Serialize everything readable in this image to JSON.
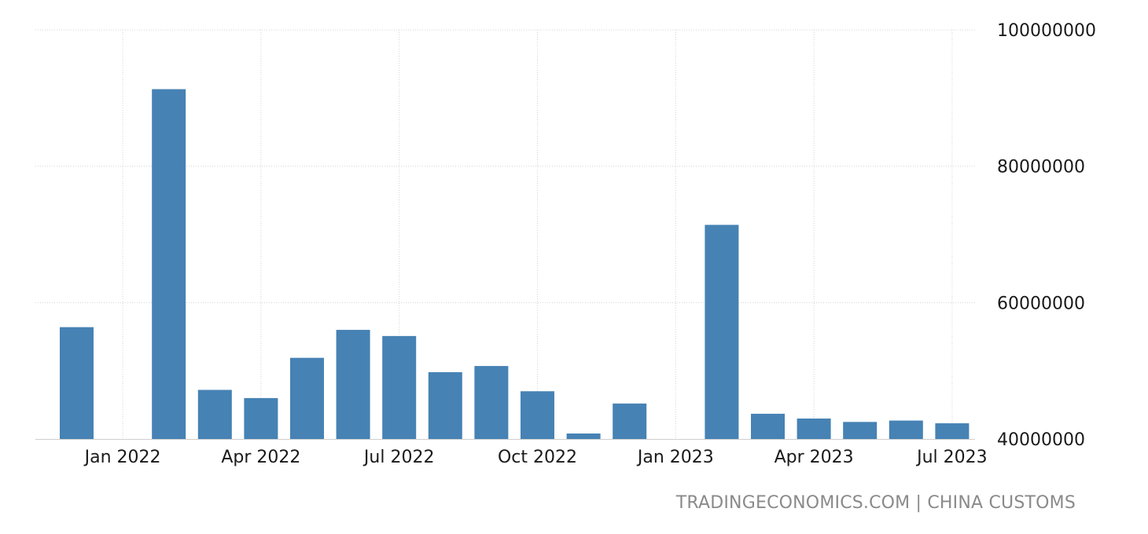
{
  "chart_data": {
    "type": "bar",
    "title": "",
    "xlabel": "",
    "ylabel": "",
    "categories": [
      "Dec 2021",
      "Jan 2022",
      "Feb 2022",
      "Mar 2022",
      "Apr 2022",
      "May 2022",
      "Jun 2022",
      "Jul 2022",
      "Aug 2022",
      "Sep 2022",
      "Oct 2022",
      "Nov 2022",
      "Dec 2022",
      "Jan 2023",
      "Feb 2023",
      "Mar 2023",
      "Apr 2023",
      "May 2023",
      "Jun 2023",
      "Jul 2023"
    ],
    "values": [
      56400000,
      null,
      91300000,
      47200000,
      46000000,
      51900000,
      56000000,
      55100000,
      49800000,
      50700000,
      47000000,
      40800000,
      45200000,
      null,
      71400000,
      43700000,
      43000000,
      42500000,
      42700000,
      42300000
    ],
    "ylim": [
      40000000,
      100000000
    ],
    "y_ticks": [
      "40000000",
      "60000000",
      "80000000",
      "100000000"
    ],
    "x_ticks": [
      "Jan 2022",
      "Apr 2022",
      "Jul 2022",
      "Oct 2022",
      "Jan 2023",
      "Apr 2023",
      "Jul 2023"
    ],
    "bar_color": "#4682b4",
    "grid": true,
    "legend": "none",
    "y_axis_side": "right"
  },
  "source": {
    "text": "TRADINGECONOMICS.COM | CHINA CUSTOMS",
    "color": "#8a8a8a"
  }
}
